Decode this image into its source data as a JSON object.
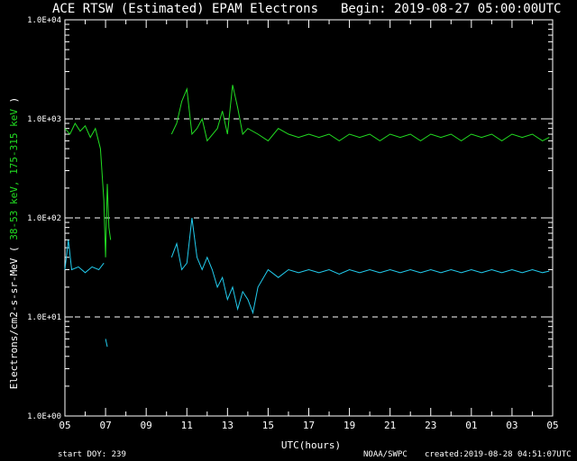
{
  "header": {
    "title": "ACE RTSW (Estimated) EPAM Electrons",
    "begin": "Begin: 2019-08-27 05:00:00UTC"
  },
  "footer": {
    "start_doy": "start DOY: 239",
    "source": "NOAA/SWPC",
    "created": "created:2019-08-28 04:51:07UTC"
  },
  "colors": {
    "background": "#000000",
    "axes": "#ffffff",
    "low_energy": "#22dd22",
    "high_energy": "#22ccee"
  },
  "chart_data": {
    "type": "line",
    "xlabel": "UTC(hours)",
    "ylabel_prefix": "Electrons/cm2-s-sr-MeV",
    "ylabel_series_a": "38-53 keV,",
    "ylabel_series_b": "175-315 keV",
    "y_scale": "log",
    "ylim": [
      1,
      10000
    ],
    "xlim": [
      "2019-08-27 05:00",
      "2019-08-28 05:00"
    ],
    "x_ticks": [
      "05",
      "07",
      "09",
      "11",
      "13",
      "15",
      "17",
      "19",
      "21",
      "23",
      "01",
      "03",
      "05"
    ],
    "y_ticks": [
      "1.0E+00",
      "1.0E+01",
      "1.0E+02",
      "1.0E+03",
      "1.0E+04"
    ],
    "reference_lines": [
      10,
      100,
      1000
    ],
    "series": [
      {
        "name": "38-53 keV",
        "color": "#22dd22",
        "segments": [
          [
            [
              "2019-08-27 05:00",
              800
            ],
            [
              "2019-08-27 05:15",
              700
            ],
            [
              "2019-08-27 05:30",
              900
            ],
            [
              "2019-08-27 05:45",
              750
            ],
            [
              "2019-08-27 06:00",
              850
            ],
            [
              "2019-08-27 06:15",
              650
            ],
            [
              "2019-08-27 06:30",
              800
            ],
            [
              "2019-08-27 06:45",
              500
            ],
            [
              "2019-08-27 06:55",
              150
            ],
            [
              "2019-08-27 07:00",
              40
            ],
            [
              "2019-08-27 07:05",
              220
            ],
            [
              "2019-08-27 07:10",
              80
            ],
            [
              "2019-08-27 07:15",
              60
            ]
          ],
          [
            [
              "2019-08-27 10:15",
              700
            ],
            [
              "2019-08-27 10:30",
              900
            ],
            [
              "2019-08-27 10:45",
              1500
            ],
            [
              "2019-08-27 11:00",
              2000
            ],
            [
              "2019-08-27 11:15",
              700
            ],
            [
              "2019-08-27 11:30",
              800
            ],
            [
              "2019-08-27 11:45",
              1000
            ],
            [
              "2019-08-27 12:00",
              600
            ],
            [
              "2019-08-27 12:30",
              800
            ],
            [
              "2019-08-27 12:45",
              1200
            ],
            [
              "2019-08-27 13:00",
              700
            ],
            [
              "2019-08-27 13:15",
              2200
            ],
            [
              "2019-08-27 13:30",
              1300
            ],
            [
              "2019-08-27 13:45",
              700
            ],
            [
              "2019-08-27 14:00",
              800
            ],
            [
              "2019-08-27 14:30",
              700
            ],
            [
              "2019-08-27 15:00",
              600
            ],
            [
              "2019-08-27 15:30",
              800
            ],
            [
              "2019-08-27 16:00",
              700
            ],
            [
              "2019-08-27 16:30",
              650
            ],
            [
              "2019-08-27 17:00",
              700
            ],
            [
              "2019-08-27 17:30",
              650
            ],
            [
              "2019-08-27 18:00",
              700
            ],
            [
              "2019-08-27 18:30",
              600
            ],
            [
              "2019-08-27 19:00",
              700
            ],
            [
              "2019-08-27 19:30",
              650
            ],
            [
              "2019-08-27 20:00",
              700
            ],
            [
              "2019-08-27 20:30",
              600
            ],
            [
              "2019-08-27 21:00",
              700
            ],
            [
              "2019-08-27 21:30",
              650
            ],
            [
              "2019-08-27 22:00",
              700
            ],
            [
              "2019-08-27 22:30",
              600
            ],
            [
              "2019-08-27 23:00",
              700
            ],
            [
              "2019-08-27 23:30",
              650
            ],
            [
              "2019-08-28 00:00",
              700
            ],
            [
              "2019-08-28 00:30",
              600
            ],
            [
              "2019-08-28 01:00",
              700
            ],
            [
              "2019-08-28 01:30",
              650
            ],
            [
              "2019-08-28 02:00",
              700
            ],
            [
              "2019-08-28 02:30",
              600
            ],
            [
              "2019-08-28 03:00",
              700
            ],
            [
              "2019-08-28 03:30",
              650
            ],
            [
              "2019-08-28 04:00",
              700
            ],
            [
              "2019-08-28 04:30",
              600
            ],
            [
              "2019-08-28 04:50",
              650
            ]
          ]
        ]
      },
      {
        "name": "175-315 keV",
        "color": "#22ccee",
        "segments": [
          [
            [
              "2019-08-27 05:00",
              30
            ],
            [
              "2019-08-27 05:10",
              60
            ],
            [
              "2019-08-27 05:20",
              30
            ],
            [
              "2019-08-27 05:40",
              32
            ],
            [
              "2019-08-27 06:00",
              28
            ],
            [
              "2019-08-27 06:20",
              32
            ],
            [
              "2019-08-27 06:40",
              30
            ],
            [
              "2019-08-27 06:55",
              35
            ]
          ],
          [
            [
              "2019-08-27 07:00",
              6
            ],
            [
              "2019-08-27 07:05",
              5
            ]
          ],
          [
            [
              "2019-08-27 10:15",
              40
            ],
            [
              "2019-08-27 10:30",
              55
            ],
            [
              "2019-08-27 10:45",
              30
            ],
            [
              "2019-08-27 11:00",
              35
            ],
            [
              "2019-08-27 11:15",
              100
            ],
            [
              "2019-08-27 11:30",
              40
            ],
            [
              "2019-08-27 11:45",
              30
            ],
            [
              "2019-08-27 12:00",
              40
            ],
            [
              "2019-08-27 12:15",
              30
            ],
            [
              "2019-08-27 12:30",
              20
            ],
            [
              "2019-08-27 12:45",
              25
            ],
            [
              "2019-08-27 13:00",
              15
            ],
            [
              "2019-08-27 13:15",
              20
            ],
            [
              "2019-08-27 13:30",
              12
            ],
            [
              "2019-08-27 13:45",
              18
            ],
            [
              "2019-08-27 14:00",
              15
            ],
            [
              "2019-08-27 14:15",
              11
            ],
            [
              "2019-08-27 14:30",
              20
            ],
            [
              "2019-08-27 15:00",
              30
            ],
            [
              "2019-08-27 15:30",
              25
            ],
            [
              "2019-08-27 16:00",
              30
            ],
            [
              "2019-08-27 16:30",
              28
            ],
            [
              "2019-08-27 17:00",
              30
            ],
            [
              "2019-08-27 17:30",
              28
            ],
            [
              "2019-08-27 18:00",
              30
            ],
            [
              "2019-08-27 18:30",
              27
            ],
            [
              "2019-08-27 19:00",
              30
            ],
            [
              "2019-08-27 19:30",
              28
            ],
            [
              "2019-08-27 20:00",
              30
            ],
            [
              "2019-08-27 20:30",
              28
            ],
            [
              "2019-08-27 21:00",
              30
            ],
            [
              "2019-08-27 21:30",
              28
            ],
            [
              "2019-08-27 22:00",
              30
            ],
            [
              "2019-08-27 22:30",
              28
            ],
            [
              "2019-08-27 23:00",
              30
            ],
            [
              "2019-08-27 23:30",
              28
            ],
            [
              "2019-08-28 00:00",
              30
            ],
            [
              "2019-08-28 00:30",
              28
            ],
            [
              "2019-08-28 01:00",
              30
            ],
            [
              "2019-08-28 01:30",
              28
            ],
            [
              "2019-08-28 02:00",
              30
            ],
            [
              "2019-08-28 02:30",
              28
            ],
            [
              "2019-08-28 03:00",
              30
            ],
            [
              "2019-08-28 03:30",
              28
            ],
            [
              "2019-08-28 04:00",
              30
            ],
            [
              "2019-08-28 04:30",
              28
            ],
            [
              "2019-08-28 04:50",
              29
            ]
          ]
        ]
      }
    ]
  }
}
